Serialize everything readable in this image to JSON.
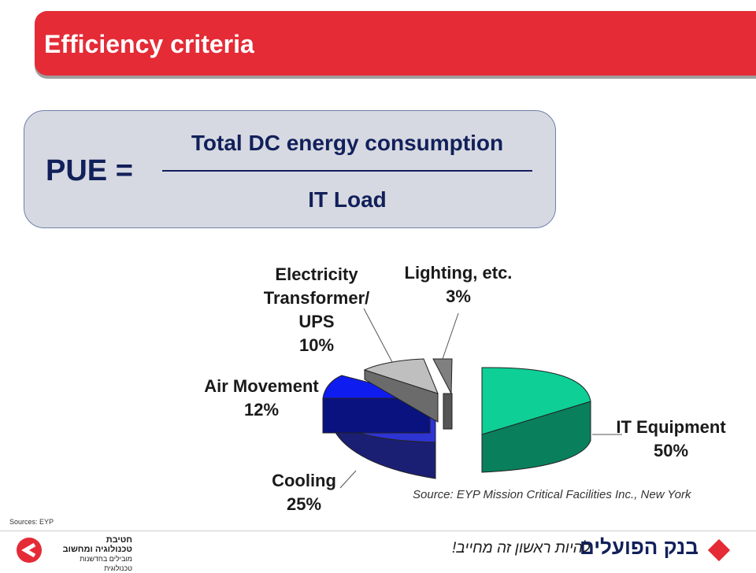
{
  "header": {
    "title": "Efficiency criteria"
  },
  "formula": {
    "lhs": "PUE =",
    "numerator": "Total DC energy consumption",
    "denominator": "IT Load"
  },
  "chart_data": {
    "type": "pie",
    "title": "",
    "slices": [
      {
        "label": "IT Equipment",
        "value_label": "50%",
        "value": 50,
        "color": "#0ecf96"
      },
      {
        "label": "Cooling",
        "value_label": "25%",
        "value": 25,
        "color": "#2e34d2"
      },
      {
        "label": "Air Movement",
        "value_label": "12%",
        "value": 12,
        "color": "#0f1cf0"
      },
      {
        "label": "Electricity Transformer/ UPS",
        "value_label": "10%",
        "value": 10,
        "color": "#bfbfbf"
      },
      {
        "label": "Lighting, etc.",
        "value_label": "3%",
        "value": 3,
        "color": "#808080"
      }
    ],
    "legend": "none",
    "source_note": "Source: EYP Mission Critical Facilities Inc., New York"
  },
  "footer": {
    "sources": "Sources: EYP",
    "left_logo": [
      "חטיבת",
      "טכנולוגיה ומחשוב",
      "מובילים בחדשנות טכנולוגית"
    ],
    "right_slogan": "להיות ראשון זה מחייב!",
    "right_name": "בנק הפועלים",
    "brand_color": "#e42b36"
  }
}
